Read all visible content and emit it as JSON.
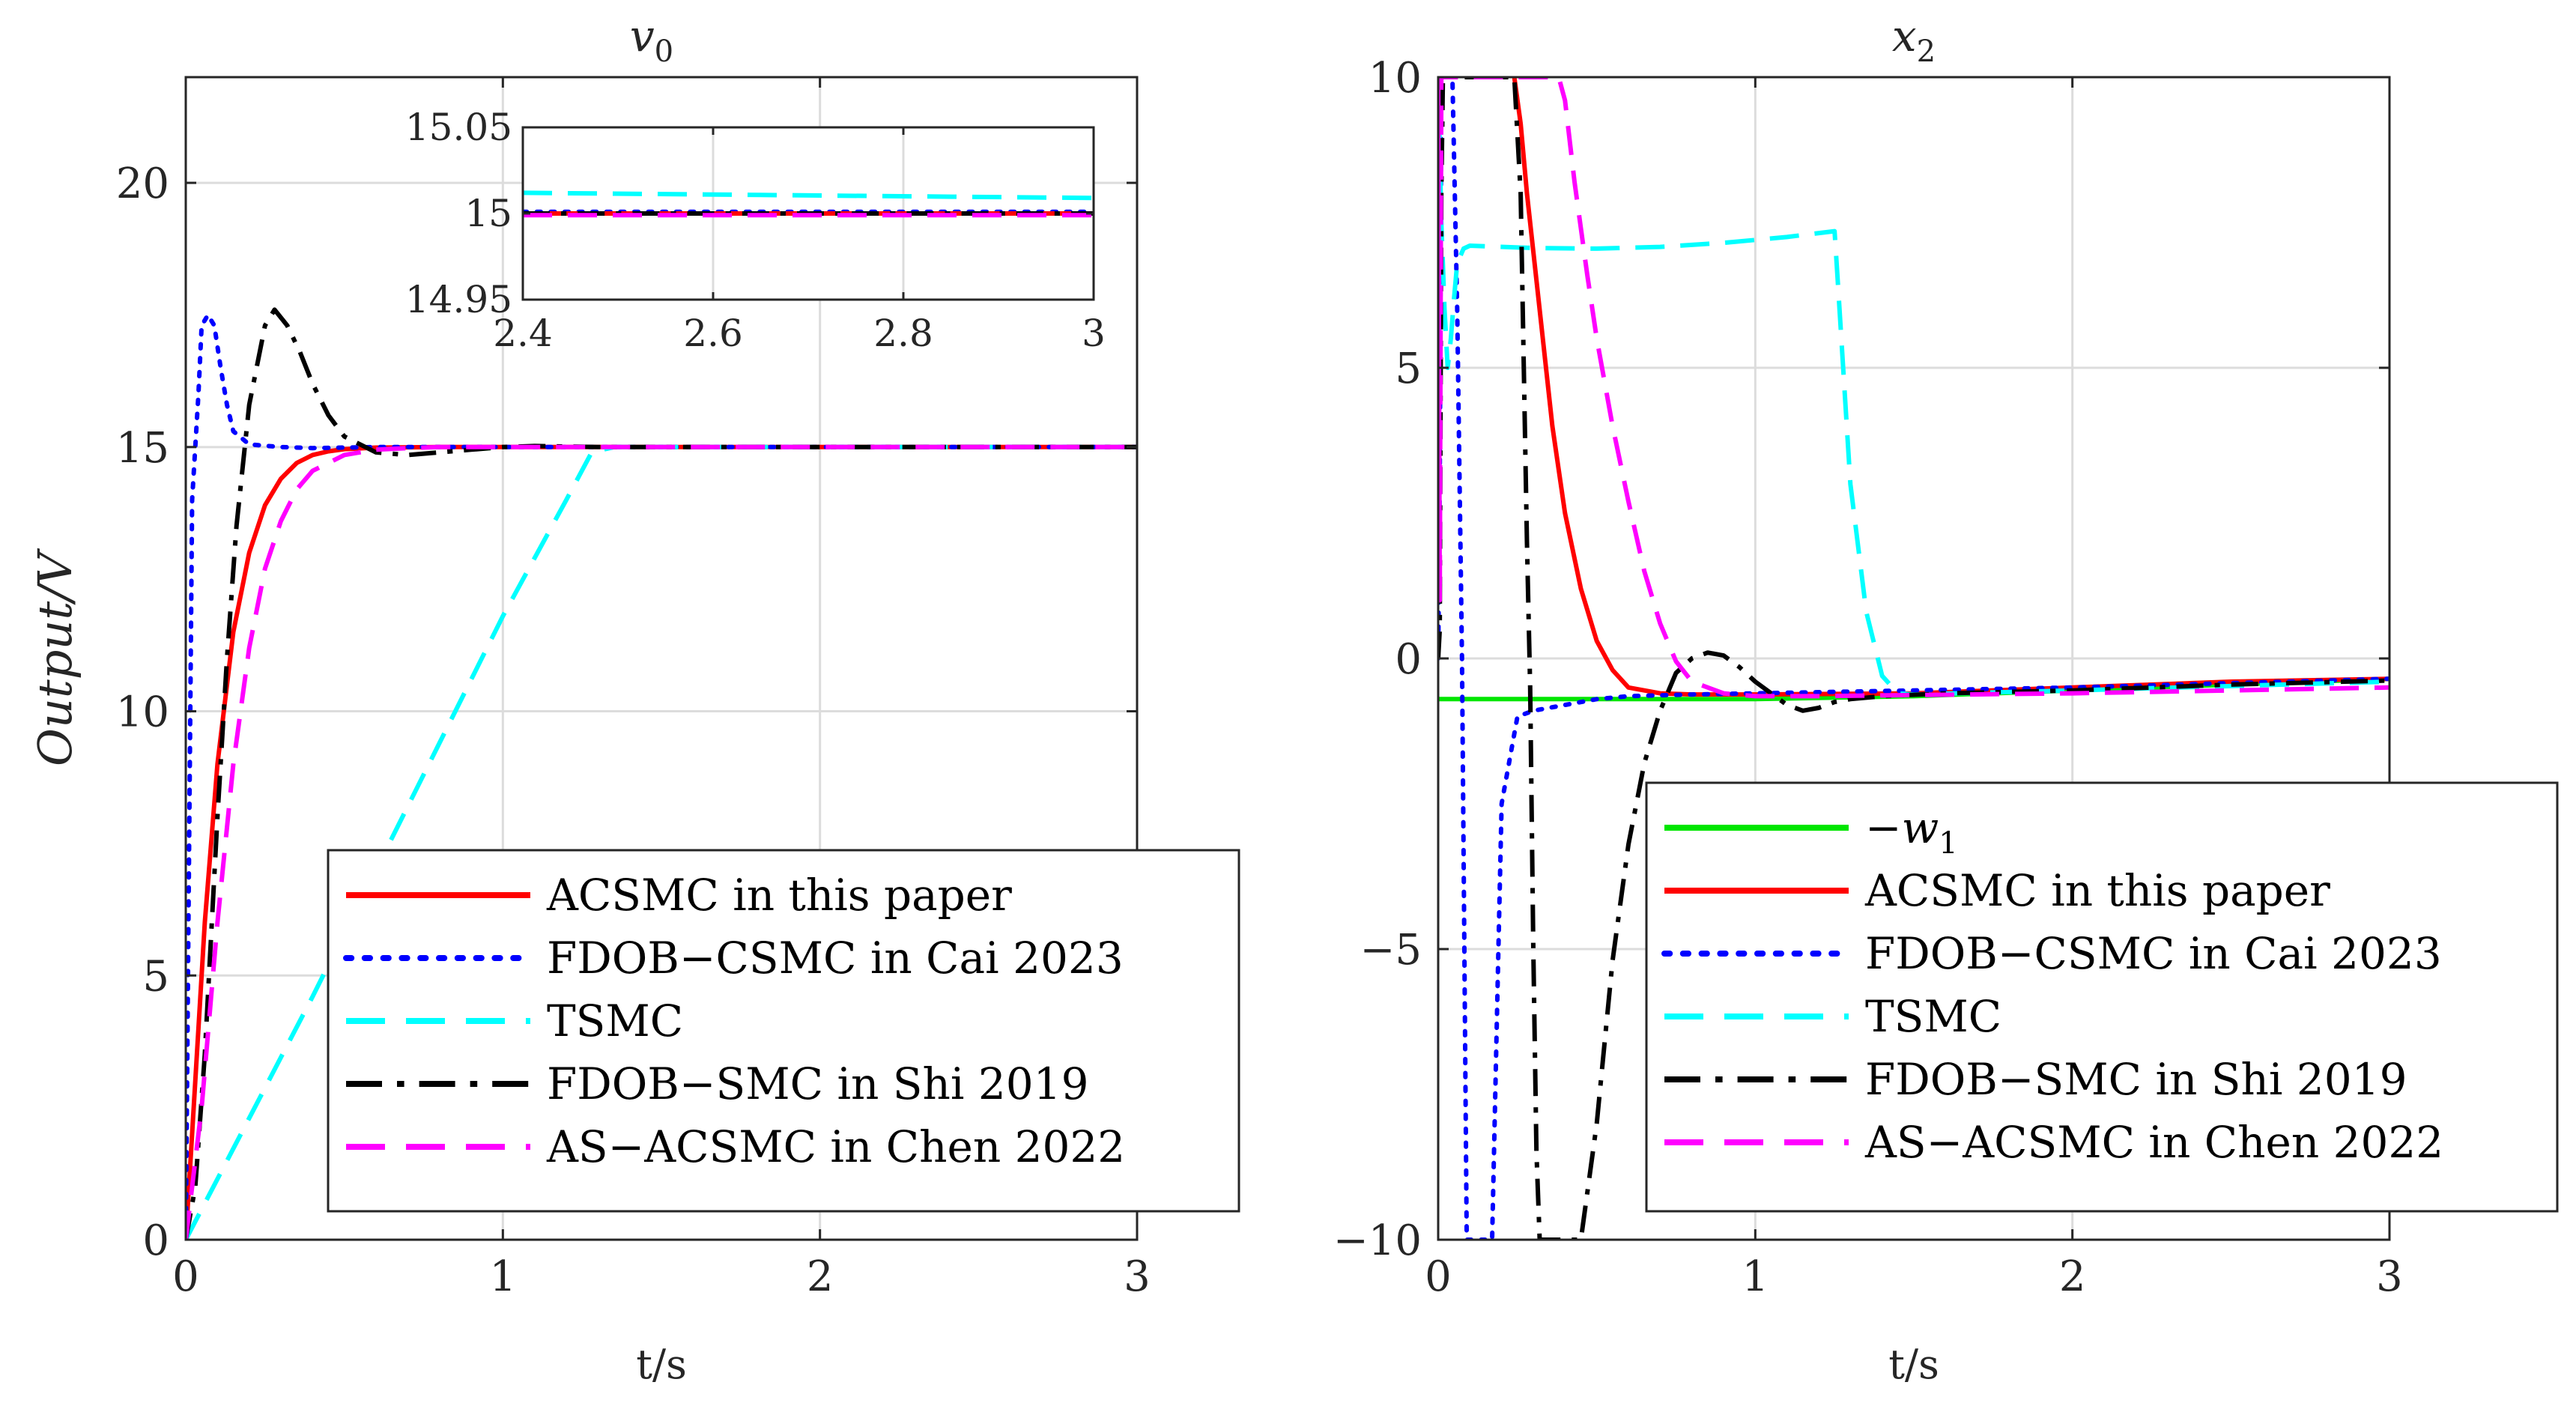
{
  "chart_data": [
    {
      "type": "line",
      "title": "v0",
      "title_base": "v",
      "title_sub": "0",
      "xlabel": "t/s",
      "ylabel": "Output/V",
      "xlim": [
        0,
        3
      ],
      "ylim": [
        0,
        22
      ],
      "xticks": [
        0,
        1,
        2,
        3
      ],
      "yticks": [
        0,
        5,
        10,
        15,
        20
      ],
      "grid": true,
      "legend_position": "bottom-right",
      "series": [
        {
          "name": "ACSMC in this paper",
          "color": "#ff0000",
          "style": "solid",
          "x": [
            0,
            0.03,
            0.06,
            0.1,
            0.15,
            0.2,
            0.25,
            0.3,
            0.35,
            0.4,
            0.45,
            0.5,
            0.6,
            0.8,
            1.0,
            1.5,
            2.0,
            2.5,
            3.0
          ],
          "y": [
            0,
            3.0,
            6.0,
            9.0,
            11.5,
            13.0,
            13.9,
            14.4,
            14.7,
            14.85,
            14.92,
            14.96,
            14.99,
            15.0,
            15.0,
            15.0,
            15.0,
            15.0,
            15.0
          ]
        },
        {
          "name": "FDOB−CSMC in Cai 2023",
          "color": "#0000ff",
          "style": "dotted",
          "x": [
            0,
            0.01,
            0.02,
            0.03,
            0.04,
            0.05,
            0.07,
            0.09,
            0.11,
            0.13,
            0.15,
            0.2,
            0.3,
            0.4,
            0.6,
            1.0,
            2.0,
            3.0
          ],
          "y": [
            0,
            7.0,
            14.0,
            15.0,
            16.0,
            17.3,
            17.5,
            17.3,
            16.5,
            15.8,
            15.3,
            15.05,
            15.0,
            14.98,
            15.0,
            15.0,
            15.0,
            15.0
          ]
        },
        {
          "name": "TSMC",
          "color": "#00ffff",
          "style": "dashed",
          "x": [
            0,
            0.2,
            0.4,
            0.6,
            0.8,
            1.0,
            1.2,
            1.28,
            1.35,
            1.5,
            2.0,
            3.0
          ],
          "y": [
            0,
            2.3,
            4.6,
            7.0,
            9.4,
            11.8,
            14.0,
            14.9,
            15.0,
            15.0,
            15.0,
            15.0
          ]
        },
        {
          "name": "FDOB−SMC in Shi 2019",
          "color": "#000000",
          "style": "dashdot",
          "x": [
            0,
            0.03,
            0.06,
            0.1,
            0.13,
            0.16,
            0.2,
            0.25,
            0.28,
            0.32,
            0.36,
            0.4,
            0.45,
            0.5,
            0.6,
            0.7,
            0.8,
            0.9,
            1.0,
            1.1,
            1.3,
            2.0,
            3.0
          ],
          "y": [
            0,
            1.0,
            3.5,
            8.0,
            11.0,
            13.5,
            15.8,
            17.3,
            17.6,
            17.3,
            16.8,
            16.2,
            15.6,
            15.2,
            14.9,
            14.85,
            14.9,
            14.95,
            15.0,
            15.02,
            15.0,
            15.0,
            15.0
          ]
        },
        {
          "name": "AS−ACSMC in Chen 2022",
          "color": "#ff00ff",
          "style": "dashed",
          "x": [
            0,
            0.05,
            0.1,
            0.15,
            0.2,
            0.25,
            0.3,
            0.35,
            0.4,
            0.5,
            0.6,
            0.7,
            0.8,
            1.0,
            1.5,
            2.0,
            3.0
          ],
          "y": [
            0,
            2.5,
            6.0,
            9.0,
            11.2,
            12.7,
            13.6,
            14.2,
            14.55,
            14.85,
            14.95,
            14.98,
            15.0,
            15.0,
            15.0,
            15.0,
            15.0
          ]
        }
      ],
      "inset": {
        "xlim": [
          2.4,
          3.0
        ],
        "ylim": [
          14.95,
          15.05
        ],
        "xticks": [
          "2.4",
          "2.6",
          "2.8",
          "3"
        ],
        "yticks": [
          "14.95",
          "15",
          "15.05"
        ],
        "series": [
          {
            "name": "TSMC",
            "color": "#00ffff",
            "style": "dashed",
            "x": [
              2.4,
              3.0
            ],
            "y": [
              15.012,
              15.009
            ]
          },
          {
            "name": "FDOB−CSMC in Cai 2023",
            "color": "#0000ff",
            "style": "dotted",
            "x": [
              2.4,
              3.0
            ],
            "y": [
              15.001,
              15.001
            ]
          },
          {
            "name": "ACSMC in this paper",
            "color": "#ff0000",
            "style": "solid",
            "x": [
              2.4,
              3.0
            ],
            "y": [
              15.0,
              15.0
            ]
          },
          {
            "name": "FDOB−SMC in Shi 2019",
            "color": "#000000",
            "style": "dashdot",
            "x": [
              2.4,
              3.0
            ],
            "y": [
              15.0,
              15.0
            ]
          },
          {
            "name": "AS−ACSMC in Chen 2022",
            "color": "#ff00ff",
            "style": "dashed",
            "x": [
              2.4,
              3.0
            ],
            "y": [
              14.999,
              14.999
            ]
          }
        ]
      }
    },
    {
      "type": "line",
      "title": "x2",
      "title_base": "x",
      "title_sub": "2",
      "xlabel": "t/s",
      "ylabel": "",
      "xlim": [
        0,
        3
      ],
      "ylim": [
        -10,
        10
      ],
      "xticks": [
        0,
        1,
        2,
        3
      ],
      "yticks": [
        -10,
        -5,
        0,
        5,
        10
      ],
      "ytick_labels": [
        "−10",
        "−5",
        "0",
        "5",
        "10"
      ],
      "grid": true,
      "legend_position": "bottom-right",
      "series": [
        {
          "name": "−w1",
          "color": "#00e600",
          "style": "solid",
          "x": [
            0,
            0.5,
            1.0,
            1.5,
            2.0,
            2.5,
            3.0
          ],
          "y": [
            -0.7,
            -0.7,
            -0.7,
            -0.65,
            -0.55,
            -0.45,
            -0.35
          ]
        },
        {
          "name": "ACSMC in this paper",
          "color": "#ff0000",
          "style": "solid",
          "x": [
            0.24,
            0.26,
            0.28,
            0.3,
            0.33,
            0.36,
            0.4,
            0.45,
            0.5,
            0.55,
            0.6,
            0.7,
            0.8,
            1.0,
            1.5,
            2.0,
            2.5,
            3.0
          ],
          "y": [
            10.0,
            9.2,
            8.0,
            7.0,
            5.5,
            4.0,
            2.5,
            1.2,
            0.3,
            -0.2,
            -0.5,
            -0.6,
            -0.62,
            -0.62,
            -0.6,
            -0.5,
            -0.4,
            -0.35
          ]
        },
        {
          "name": "FDOB−CSMC in Cai 2023",
          "color": "#0000ff",
          "style": "dotted",
          "x": [
            0.0,
            0.005,
            0.01,
            0.02,
            0.03,
            0.045,
            0.06,
            0.075,
            0.09,
            0.1,
            0.12,
            0.14,
            0.17,
            0.19,
            0.2,
            0.25,
            0.3,
            0.4,
            0.5,
            0.6,
            0.8,
            1.0,
            1.5,
            2.0,
            3.0
          ],
          "y": [
            0.0,
            3.0,
            10.0,
            10.0,
            10.0,
            10.0,
            6.0,
            0.0,
            -10.0,
            -10.0,
            -10.0,
            -10.0,
            -10.0,
            -5.0,
            -2.5,
            -1.0,
            -0.9,
            -0.8,
            -0.7,
            -0.65,
            -0.62,
            -0.6,
            -0.55,
            -0.5,
            -0.35
          ]
        },
        {
          "name": "TSMC",
          "color": "#00ffff",
          "style": "dashed",
          "x": [
            0.0,
            0.01,
            0.02,
            0.03,
            0.04,
            0.05,
            0.06,
            0.08,
            0.1,
            0.3,
            0.5,
            0.7,
            0.9,
            1.1,
            1.25,
            1.26,
            1.3,
            1.35,
            1.4,
            1.45,
            1.5,
            2.0,
            3.0
          ],
          "y": [
            10.0,
            7.5,
            6.0,
            5.0,
            5.5,
            6.2,
            6.8,
            7.05,
            7.1,
            7.06,
            7.05,
            7.08,
            7.15,
            7.25,
            7.35,
            6.5,
            3.0,
            0.8,
            -0.3,
            -0.6,
            -0.62,
            -0.55,
            -0.4
          ]
        },
        {
          "name": "FDOB−SMC in Shi 2019",
          "color": "#000000",
          "style": "dashdot",
          "x": [
            0.0,
            0.005,
            0.01,
            0.015,
            0.02,
            0.06,
            0.1,
            0.15,
            0.2,
            0.22,
            0.24,
            0.26,
            0.28,
            0.29,
            0.3,
            0.31,
            0.32,
            0.33,
            0.35,
            0.4,
            0.45,
            0.5,
            0.55,
            0.6,
            0.65,
            0.7,
            0.75,
            0.8,
            0.85,
            0.9,
            0.95,
            1.0,
            1.05,
            1.1,
            1.15,
            1.2,
            1.25,
            1.3,
            1.4,
            1.6,
            2.0,
            2.5,
            3.0
          ],
          "y": [
            0.0,
            0.5,
            8.0,
            10.0,
            10.0,
            10.0,
            10.0,
            10.0,
            10.0,
            10.0,
            10.0,
            8.0,
            2.0,
            -0.5,
            -5.0,
            -8.5,
            -10.0,
            -10.0,
            -10.0,
            -10.0,
            -10.0,
            -8.0,
            -5.2,
            -3.2,
            -1.8,
            -0.9,
            -0.25,
            0.0,
            0.1,
            0.05,
            -0.15,
            -0.4,
            -0.6,
            -0.8,
            -0.9,
            -0.85,
            -0.75,
            -0.7,
            -0.65,
            -0.6,
            -0.55,
            -0.45,
            -0.38
          ]
        },
        {
          "name": "AS−ACSMC in Chen 2022",
          "color": "#ff00ff",
          "style": "dashed",
          "x": [
            0.0,
            0.005,
            0.01,
            0.38,
            0.4,
            0.43,
            0.47,
            0.5,
            0.55,
            0.6,
            0.65,
            0.7,
            0.75,
            0.8,
            0.9,
            1.0,
            1.2,
            1.5,
            2.0,
            2.5,
            3.0
          ],
          "y": [
            10.0,
            1.0,
            10.0,
            10.0,
            9.6,
            8.2,
            6.6,
            5.5,
            4.0,
            2.7,
            1.5,
            0.6,
            -0.05,
            -0.4,
            -0.6,
            -0.65,
            -0.65,
            -0.63,
            -0.6,
            -0.55,
            -0.5
          ]
        }
      ]
    }
  ],
  "legend_left": {
    "entries": [
      {
        "label": "ACSMC in this paper",
        "color": "#ff0000",
        "style": "solid"
      },
      {
        "label": "FDOB−CSMC in Cai 2023",
        "color": "#0000ff",
        "style": "dotted"
      },
      {
        "label": "TSMC",
        "color": "#00ffff",
        "style": "dashed"
      },
      {
        "label": "FDOB−SMC in Shi 2019",
        "color": "#000000",
        "style": "dashdot"
      },
      {
        "label": "AS−ACSMC in Chen 2022",
        "color": "#ff00ff",
        "style": "dashed"
      }
    ]
  },
  "legend_right": {
    "entries": [
      {
        "label": "−w",
        "sub": "1",
        "color": "#00e600",
        "style": "solid"
      },
      {
        "label": "ACSMC in this paper",
        "color": "#ff0000",
        "style": "solid"
      },
      {
        "label": "FDOB−CSMC in Cai 2023",
        "color": "#0000ff",
        "style": "dotted"
      },
      {
        "label": "TSMC",
        "color": "#00ffff",
        "style": "dashed"
      },
      {
        "label": "FDOB−SMC in Shi 2019",
        "color": "#000000",
        "style": "dashdot"
      },
      {
        "label": "AS−ACSMC in Chen 2022",
        "color": "#ff00ff",
        "style": "dashed"
      }
    ]
  }
}
